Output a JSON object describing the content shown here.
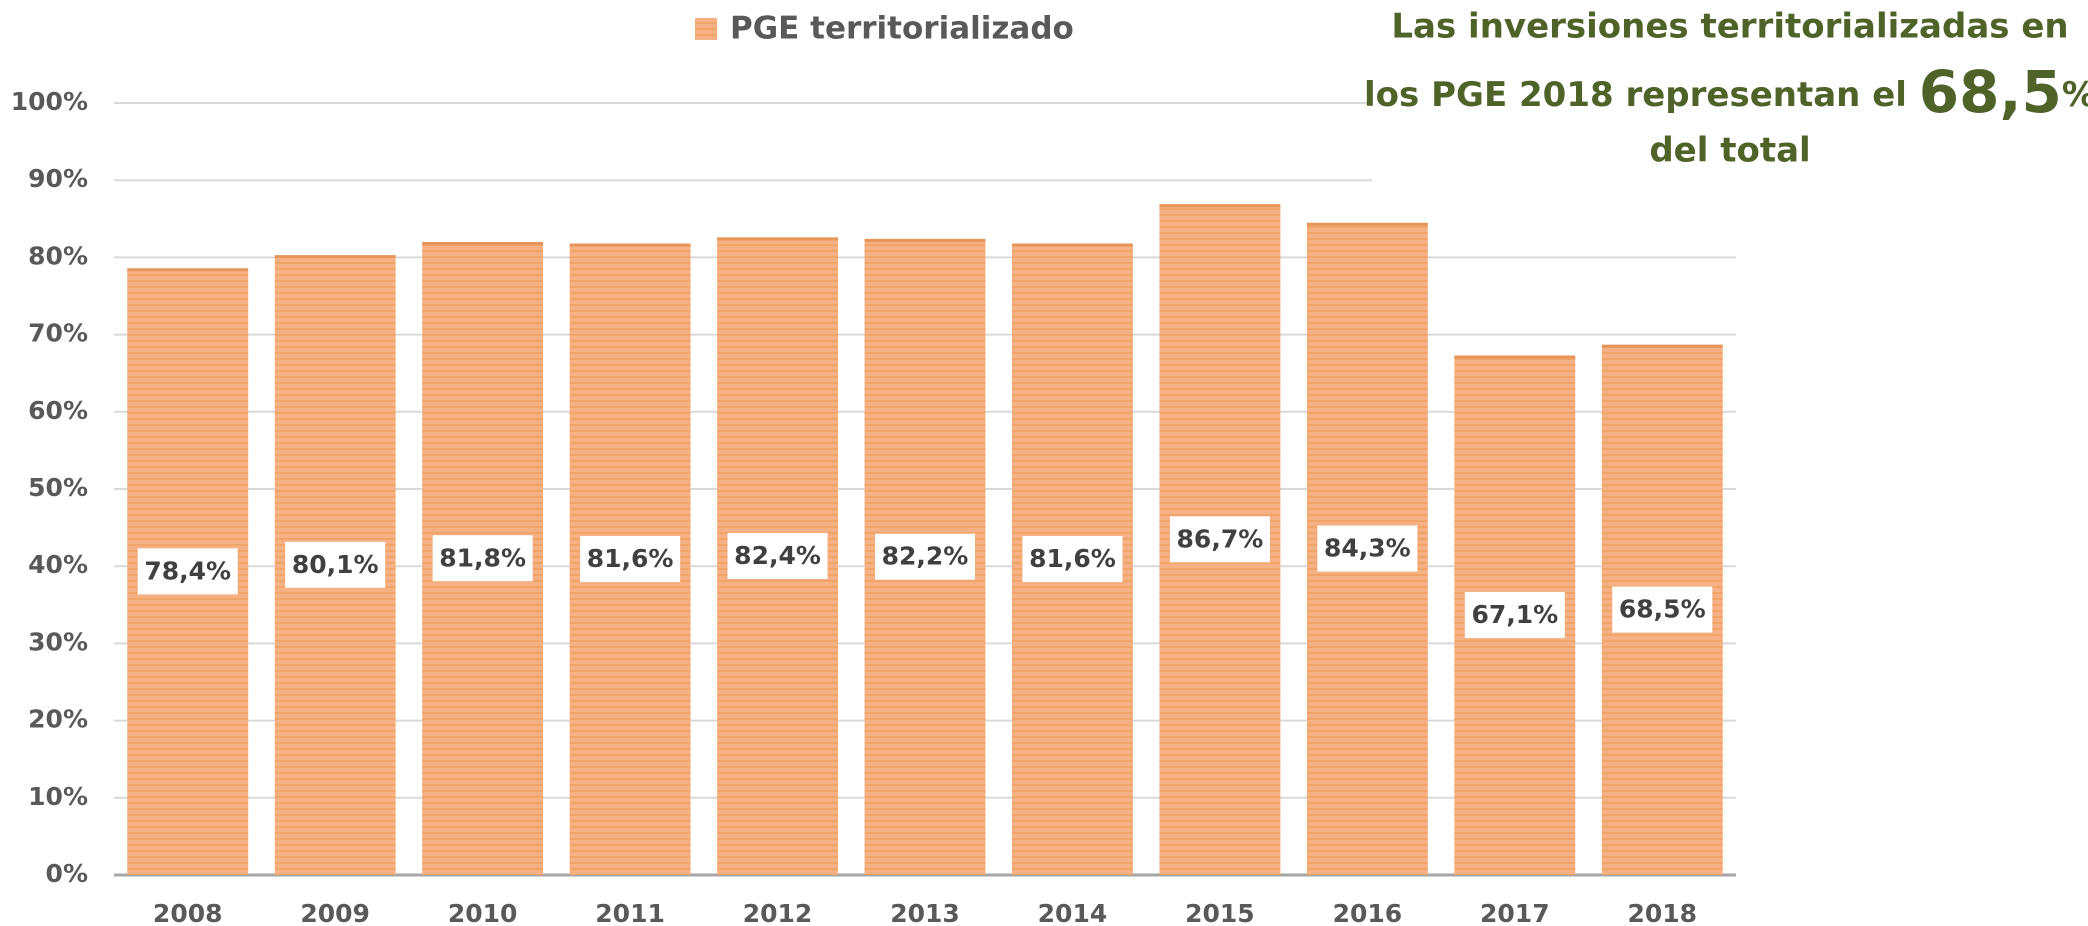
{
  "chart_data": {
    "type": "bar",
    "legend": "PGE territorializado",
    "annotation": [
      "Las inversiones territorializadas en",
      "los PGE 2018 representan el ",
      "68,5",
      "%",
      "del total"
    ],
    "categories": [
      "2008",
      "2009",
      "2010",
      "2011",
      "2012",
      "2013",
      "2014",
      "2015",
      "2016",
      "2017",
      "2018"
    ],
    "values": [
      78.4,
      80.1,
      81.8,
      81.6,
      82.4,
      82.2,
      81.6,
      86.7,
      84.3,
      67.1,
      68.5
    ],
    "value_labels": [
      "78,4%",
      "80,1%",
      "81,8%",
      "81,6%",
      "82,4%",
      "82,2%",
      "81,6%",
      "86,7%",
      "84,3%",
      "67,1%",
      "68,5%"
    ],
    "color": "#f5b183",
    "ylim": [
      0,
      100
    ],
    "yticks": [
      {
        "value": 0,
        "label": "0%"
      },
      {
        "value": 10,
        "label": "10%"
      },
      {
        "value": 20,
        "label": "20%"
      },
      {
        "value": 30,
        "label": "30%"
      },
      {
        "value": 40,
        "label": "40%"
      },
      {
        "value": 50,
        "label": "50%"
      },
      {
        "value": 60,
        "label": "60%"
      },
      {
        "value": 70,
        "label": "70%"
      },
      {
        "value": 80,
        "label": "80%"
      },
      {
        "value": 90,
        "label": "90%"
      },
      {
        "value": 100,
        "label": "100%"
      }
    ],
    "grid": true
  }
}
